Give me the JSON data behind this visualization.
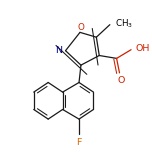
{
  "bg_color": "#ffffff",
  "bond_color": "#1a1a1a",
  "N_color": "#1a1a1a",
  "O_color": "#cc2200",
  "F_color": "#dd6600",
  "lw": 0.9,
  "lw_inner": 0.75,
  "figsize": [
    1.52,
    1.52
  ],
  "dpi": 100,
  "xlim": [
    0,
    152
  ],
  "ylim": [
    0,
    152
  ]
}
